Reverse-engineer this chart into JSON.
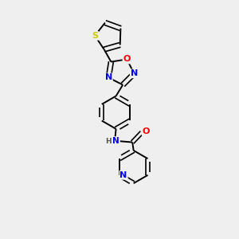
{
  "background_color": "#efefef",
  "bond_color": "#000000",
  "atom_colors": {
    "S": "#cccc00",
    "O": "#ff0000",
    "N": "#0000ff",
    "N_teal": "#008080",
    "C": "#000000"
  },
  "figsize": [
    3.0,
    3.0
  ],
  "dpi": 100,
  "lw_single": 1.4,
  "lw_double": 1.2,
  "double_sep": 0.1,
  "font_size": 7.5
}
